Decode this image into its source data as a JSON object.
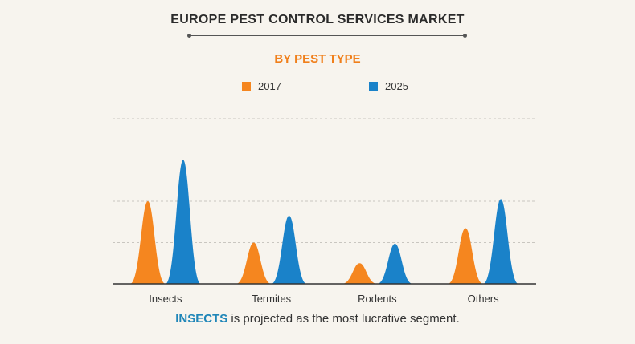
{
  "chart_data": {
    "type": "area",
    "title": "EUROPE PEST CONTROL SERVICES MARKET",
    "subtitle": "BY PEST TYPE",
    "categories": [
      "Insects",
      "Termites",
      "Rodents",
      "Others"
    ],
    "series": [
      {
        "name": "2017",
        "color": "#f5861f",
        "values": [
          2.0,
          1.0,
          0.5,
          1.35
        ]
      },
      {
        "name": "2025",
        "color": "#1a82c9",
        "values": [
          3.0,
          1.65,
          0.97,
          2.05
        ]
      }
    ],
    "ylim": [
      0,
      4
    ],
    "grid": true,
    "legend_position": "top"
  },
  "footnote": {
    "highlight": "INSECTS",
    "text": " is projected as the most lucrative segment."
  }
}
